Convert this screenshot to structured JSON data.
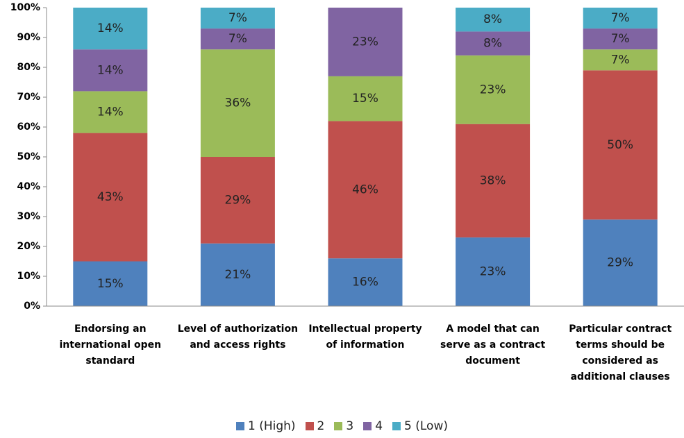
{
  "chart_data": {
    "type": "stacked_bar",
    "categories": [
      "Endorsing an international open standard",
      "Level of authorization and access rights",
      "Intellectual property of information",
      "A model that can serve as a contract document",
      "Particular contract terms should be considered as additional clauses"
    ],
    "series": [
      {
        "name": "1 (High)",
        "color": "#4f81bd",
        "values": [
          15,
          21,
          16,
          23,
          29
        ],
        "value_labels": [
          "15%",
          "21%",
          "16%",
          "23%",
          "29%"
        ]
      },
      {
        "name": "2",
        "color": "#c0504d",
        "values": [
          43,
          29,
          46,
          38,
          50
        ],
        "value_labels": [
          "43%",
          "29%",
          "46%",
          "38%",
          "50%"
        ]
      },
      {
        "name": "3",
        "color": "#9bbb59",
        "values": [
          14,
          36,
          15,
          23,
          7
        ],
        "value_labels": [
          "14%",
          "36%",
          "15%",
          "23%",
          "7%"
        ]
      },
      {
        "name": "4",
        "color": "#8064a2",
        "values": [
          14,
          7,
          23,
          8,
          7
        ],
        "value_labels": [
          "14%",
          "7%",
          "23%",
          "8%",
          "7%"
        ]
      },
      {
        "name": "5 (Low)",
        "color": "#4bacc6",
        "values": [
          14,
          7,
          null,
          8,
          7
        ],
        "value_labels": [
          "14%",
          "7%",
          null,
          "8%",
          "7%"
        ]
      }
    ],
    "ylim": [
      0,
      100
    ],
    "yticks": [
      {
        "value": 0,
        "label": "0%"
      },
      {
        "value": 10,
        "label": "10%"
      },
      {
        "value": 20,
        "label": "20%"
      },
      {
        "value": 30,
        "label": "30%"
      },
      {
        "value": 40,
        "label": "40%"
      },
      {
        "value": 50,
        "label": "50%"
      },
      {
        "value": 60,
        "label": "60%"
      },
      {
        "value": 70,
        "label": "70%"
      },
      {
        "value": 80,
        "label": "80%"
      },
      {
        "value": 90,
        "label": "90%"
      },
      {
        "value": 100,
        "label": "100%"
      }
    ],
    "legend": "bottom"
  }
}
